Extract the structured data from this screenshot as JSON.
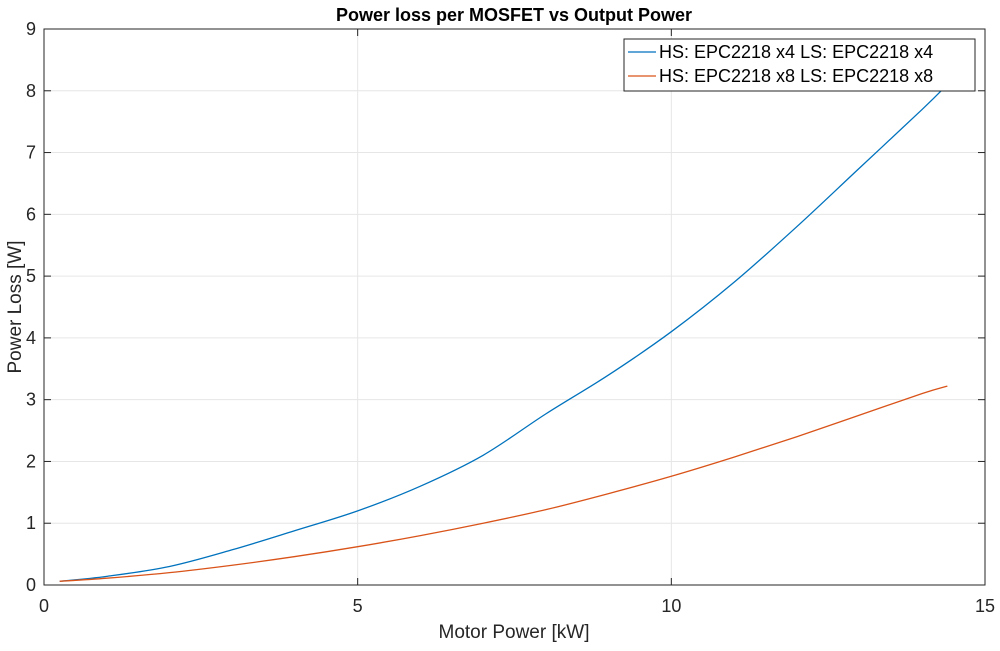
{
  "chart_data": {
    "type": "line",
    "title": "Power loss per MOSFET vs Output Power",
    "xlabel": "Motor Power [kW]",
    "ylabel": "Power Loss [W]",
    "xlim": [
      0,
      15
    ],
    "ylim": [
      0,
      9
    ],
    "xticks": [
      0,
      5,
      10,
      15
    ],
    "yticks": [
      0,
      1,
      2,
      3,
      4,
      5,
      6,
      7,
      8,
      9
    ],
    "grid": true,
    "legend_position": "top-right",
    "series": [
      {
        "name": "HS: EPC2218 x4  LS: EPC2218 x4",
        "color": "#0072BD",
        "x": [
          0.25,
          1,
          2,
          3,
          4,
          5,
          6,
          7,
          8,
          9,
          10,
          11,
          12,
          13,
          14,
          14.4
        ],
        "y": [
          0.06,
          0.14,
          0.3,
          0.57,
          0.88,
          1.2,
          1.6,
          2.1,
          2.77,
          3.4,
          4.1,
          4.9,
          5.8,
          6.75,
          7.7,
          8.1
        ]
      },
      {
        "name": "HS: EPC2218 x8  LS: EPC2218 x8",
        "color": "#D95319",
        "x": [
          0.25,
          1,
          2,
          3,
          4,
          5,
          6,
          7,
          8,
          9,
          10,
          11,
          12,
          13,
          14,
          14.4
        ],
        "y": [
          0.06,
          0.11,
          0.2,
          0.32,
          0.46,
          0.62,
          0.8,
          1.0,
          1.22,
          1.48,
          1.76,
          2.07,
          2.4,
          2.75,
          3.1,
          3.22
        ]
      }
    ]
  }
}
